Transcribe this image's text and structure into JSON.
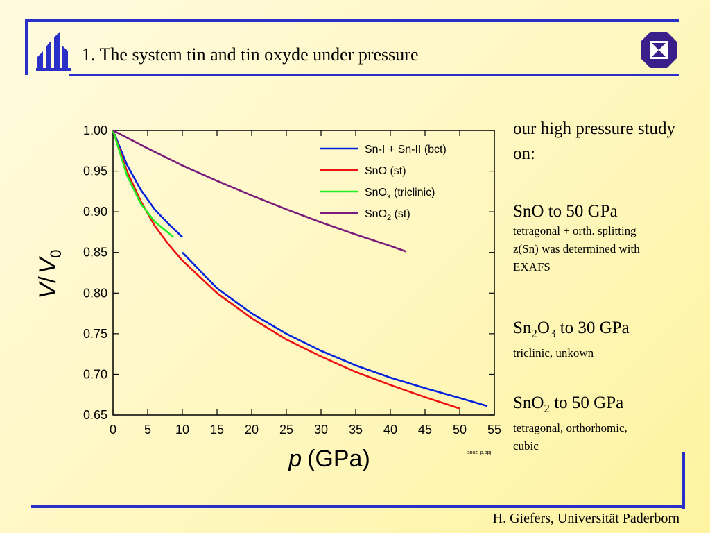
{
  "header": {
    "title": "1. The system tin and tin oxyde under pressure"
  },
  "icons": {
    "logo": "university-logo-icon",
    "emblem": "institute-emblem-icon"
  },
  "colors": {
    "frame": "#2a2fc8",
    "background": "#fff8c6"
  },
  "sidebar": {
    "intro": "our high pressure study on:",
    "blocks": [
      {
        "head": {
          "a": "SnO to 50 GPa",
          "b": "",
          "c": "",
          "d": "",
          "e": ""
        },
        "lines": [
          "tetragonal + orth. splitting",
          "z(Sn) was determined with",
          "EXAFS"
        ]
      },
      {
        "head": {
          "a": "Sn",
          "b": "2",
          "c": "O",
          "d": "3",
          "e": " to 30 GPa"
        },
        "lines": [
          "triclinic, unkown"
        ]
      },
      {
        "head": {
          "a": "SnO",
          "b": "2",
          "c": " to 50 GPa",
          "d": "",
          "e": ""
        },
        "lines": [
          "tetragonal, orthorhomic,",
          "cubic"
        ]
      }
    ]
  },
  "footer": {
    "text": "H. Giefers, Universität Paderborn"
  },
  "chart_data": {
    "type": "line",
    "xlabel_italic": "p",
    "xlabel_unit": "(GPa)",
    "ylabel": {
      "v": "V",
      "slash": "/",
      "v0": "V",
      "sub": "0"
    },
    "xlim": [
      0,
      55
    ],
    "ylim": [
      0.65,
      1.0
    ],
    "xticks": [
      0,
      5,
      10,
      15,
      20,
      25,
      30,
      35,
      40,
      45,
      50,
      55
    ],
    "yticks": [
      0.65,
      0.7,
      0.75,
      0.8,
      0.85,
      0.9,
      0.95,
      1.0
    ],
    "grid": false,
    "legend_position": "top-right",
    "file_label": "snoz_p.opj",
    "series": [
      {
        "legend": {
          "base": "Sn-I + Sn-II (bct)",
          "sub": "",
          "suffix": ""
        },
        "color": "#0022dd",
        "segments": [
          [
            [
              0,
              1.0
            ],
            [
              2,
              0.958
            ],
            [
              4,
              0.927
            ],
            [
              6,
              0.903
            ],
            [
              8,
              0.885
            ],
            [
              10,
              0.869
            ]
          ],
          [
            [
              10,
              0.85
            ],
            [
              15,
              0.806
            ],
            [
              20,
              0.775
            ],
            [
              25,
              0.75
            ],
            [
              30,
              0.729
            ],
            [
              35,
              0.711
            ],
            [
              40,
              0.696
            ],
            [
              45,
              0.683
            ],
            [
              50,
              0.671
            ],
            [
              54,
              0.661
            ]
          ]
        ]
      },
      {
        "legend": {
          "base": "SnO",
          "sub": "",
          "suffix": " (st)"
        },
        "color": "#ee1111",
        "segments": [
          [
            [
              0,
              1.0
            ],
            [
              2,
              0.95
            ],
            [
              4,
              0.913
            ],
            [
              6,
              0.883
            ],
            [
              8,
              0.86
            ],
            [
              10,
              0.84
            ],
            [
              15,
              0.8
            ],
            [
              20,
              0.769
            ],
            [
              25,
              0.743
            ],
            [
              30,
              0.722
            ],
            [
              35,
              0.703
            ],
            [
              40,
              0.687
            ],
            [
              45,
              0.672
            ],
            [
              50,
              0.658
            ]
          ]
        ]
      },
      {
        "legend": {
          "base": "SnO",
          "sub": "x",
          "suffix": " (triclinic)"
        },
        "color": "#22ee22",
        "segments": [
          [
            [
              0,
              1.0
            ],
            [
              2,
              0.945
            ],
            [
              4,
              0.91
            ],
            [
              6,
              0.888
            ],
            [
              8.7,
              0.869
            ]
          ]
        ]
      },
      {
        "legend": {
          "base": "SnO",
          "sub": "2",
          "suffix": " (st)"
        },
        "color": "#7a1a7a",
        "segments": [
          [
            [
              0,
              1.0
            ],
            [
              5,
              0.978
            ],
            [
              10,
              0.957
            ],
            [
              15,
              0.938
            ],
            [
              20,
              0.92
            ],
            [
              25,
              0.903
            ],
            [
              30,
              0.887
            ],
            [
              35,
              0.872
            ],
            [
              40,
              0.858
            ],
            [
              42.3,
              0.851
            ]
          ]
        ]
      }
    ]
  }
}
